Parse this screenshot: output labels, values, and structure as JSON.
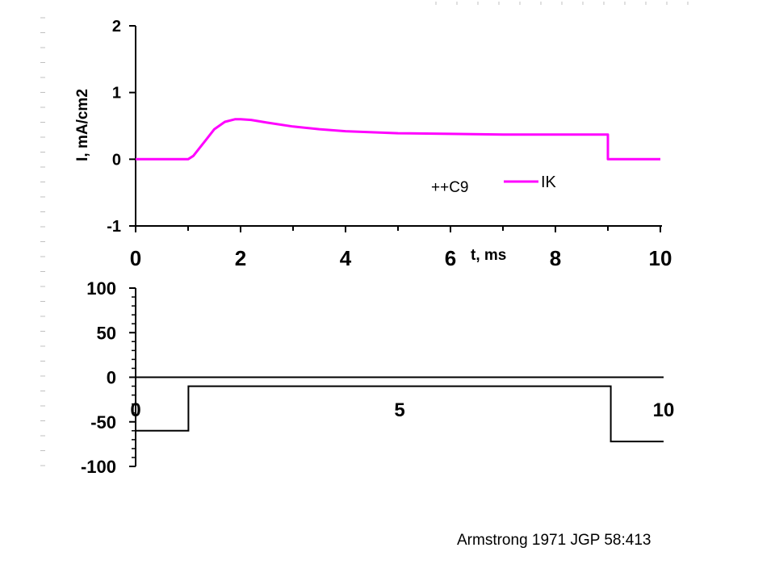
{
  "citation": "Armstrong 1971 JGP 58:413",
  "colors": {
    "trace": "#ff00ff",
    "axis": "#000000",
    "margin_dash": "#c0c0c0"
  },
  "chart_data": [
    {
      "id": "current",
      "type": "line",
      "xlabel": "t, ms",
      "ylabel": "I, mA/cm2",
      "xlim": [
        0,
        10
      ],
      "ylim": [
        -1,
        2
      ],
      "x_ticks": [
        "0",
        "2",
        "4",
        "6",
        "8",
        "10"
      ],
      "x_tick_values": [
        0,
        2,
        4,
        6,
        8,
        10
      ],
      "x_minor_ticks": [
        1,
        3,
        5,
        7,
        9
      ],
      "y_ticks": [
        "-1",
        "0",
        "1",
        "2"
      ],
      "y_tick_values": [
        -1,
        0,
        1,
        2
      ],
      "annotation": "++C9",
      "legend_position": "right, below trace",
      "series": [
        {
          "name": "IK",
          "color": "#ff00ff",
          "x": [
            0,
            1.0,
            1.1,
            1.3,
            1.5,
            1.7,
            1.9,
            2.0,
            2.2,
            2.5,
            3.0,
            3.5,
            4.0,
            5.0,
            6.0,
            7.0,
            8.0,
            9.0,
            9.0,
            10.0
          ],
          "y": [
            0,
            0,
            0.05,
            0.25,
            0.45,
            0.56,
            0.6,
            0.6,
            0.59,
            0.55,
            0.49,
            0.45,
            0.42,
            0.39,
            0.38,
            0.37,
            0.37,
            0.37,
            0,
            0
          ]
        }
      ]
    },
    {
      "id": "voltage",
      "type": "line",
      "xlim": [
        0,
        10
      ],
      "ylim": [
        -100,
        100
      ],
      "x_ticks": [
        "0",
        "5",
        "10"
      ],
      "x_tick_values": [
        0,
        5,
        10
      ],
      "y_ticks": [
        "100",
        "50",
        "0",
        "-50",
        "-100"
      ],
      "y_tick_values": [
        100,
        50,
        0,
        -50,
        -100
      ],
      "series": [
        {
          "color": "#000000",
          "x": [
            0,
            1.0,
            1.0,
            9.0,
            9.0,
            10.0
          ],
          "y": [
            -60,
            -60,
            -10,
            -10,
            -72,
            -72
          ]
        }
      ]
    }
  ]
}
